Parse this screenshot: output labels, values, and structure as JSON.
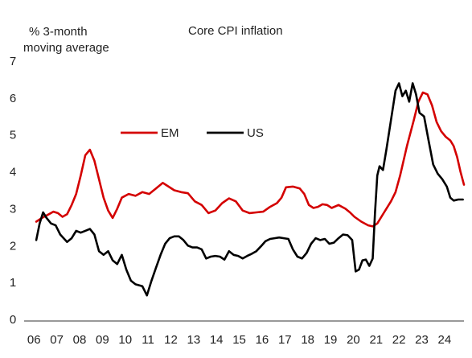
{
  "chart_data": {
    "type": "line",
    "title": "Core CPI inflation",
    "ylabel_lines": [
      "% 3-month",
      "moving average"
    ],
    "xlabel": "",
    "ylim": [
      0,
      7
    ],
    "xlim": [
      2006.0,
      2025.0
    ],
    "grid": false,
    "legend_position": "middle-left",
    "y_ticks": [
      "0",
      "1",
      "2",
      "3",
      "4",
      "5",
      "6",
      "7"
    ],
    "x_ticks": [
      {
        "label": "06",
        "x": 2006.15
      },
      {
        "label": "07",
        "x": 2007.15
      },
      {
        "label": "08",
        "x": 2008.15
      },
      {
        "label": "09",
        "x": 2009.15
      },
      {
        "label": "10",
        "x": 2010.15
      },
      {
        "label": "11",
        "x": 2011.15
      },
      {
        "label": "12",
        "x": 2012.15
      },
      {
        "label": "13",
        "x": 2013.15
      },
      {
        "label": "14",
        "x": 2014.15
      },
      {
        "label": "15",
        "x": 2015.15
      },
      {
        "label": "16",
        "x": 2016.15
      },
      {
        "label": "17",
        "x": 2017.15
      },
      {
        "label": "18",
        "x": 2018.15
      },
      {
        "label": "19",
        "x": 2019.15
      },
      {
        "label": "20",
        "x": 2020.15
      },
      {
        "label": "21",
        "x": 2021.15
      },
      {
        "label": "22",
        "x": 2022.15
      },
      {
        "label": "23",
        "x": 2023.15
      },
      {
        "label": "24",
        "x": 2024.15
      }
    ],
    "series": [
      {
        "name": "EM",
        "color": "#d40000",
        "points": [
          [
            2006.25,
            2.65
          ],
          [
            2006.5,
            2.75
          ],
          [
            2006.8,
            2.85
          ],
          [
            2007.0,
            2.92
          ],
          [
            2007.2,
            2.88
          ],
          [
            2007.4,
            2.78
          ],
          [
            2007.6,
            2.85
          ],
          [
            2007.8,
            3.1
          ],
          [
            2008.0,
            3.4
          ],
          [
            2008.2,
            3.9
          ],
          [
            2008.4,
            4.45
          ],
          [
            2008.6,
            4.6
          ],
          [
            2008.8,
            4.3
          ],
          [
            2009.0,
            3.8
          ],
          [
            2009.2,
            3.3
          ],
          [
            2009.4,
            2.95
          ],
          [
            2009.6,
            2.75
          ],
          [
            2009.8,
            3.0
          ],
          [
            2010.0,
            3.3
          ],
          [
            2010.3,
            3.4
          ],
          [
            2010.6,
            3.35
          ],
          [
            2010.9,
            3.45
          ],
          [
            2011.2,
            3.4
          ],
          [
            2011.5,
            3.55
          ],
          [
            2011.8,
            3.7
          ],
          [
            2012.0,
            3.62
          ],
          [
            2012.3,
            3.5
          ],
          [
            2012.6,
            3.45
          ],
          [
            2012.9,
            3.42
          ],
          [
            2013.2,
            3.2
          ],
          [
            2013.5,
            3.1
          ],
          [
            2013.8,
            2.88
          ],
          [
            2014.1,
            2.95
          ],
          [
            2014.4,
            3.15
          ],
          [
            2014.7,
            3.28
          ],
          [
            2015.0,
            3.2
          ],
          [
            2015.3,
            2.95
          ],
          [
            2015.6,
            2.88
          ],
          [
            2015.9,
            2.9
          ],
          [
            2016.2,
            2.92
          ],
          [
            2016.5,
            3.05
          ],
          [
            2016.8,
            3.15
          ],
          [
            2017.0,
            3.3
          ],
          [
            2017.2,
            3.58
          ],
          [
            2017.5,
            3.6
          ],
          [
            2017.8,
            3.55
          ],
          [
            2018.0,
            3.4
          ],
          [
            2018.2,
            3.1
          ],
          [
            2018.4,
            3.02
          ],
          [
            2018.6,
            3.05
          ],
          [
            2018.8,
            3.12
          ],
          [
            2019.0,
            3.1
          ],
          [
            2019.2,
            3.02
          ],
          [
            2019.5,
            3.1
          ],
          [
            2019.8,
            3.0
          ],
          [
            2020.0,
            2.9
          ],
          [
            2020.2,
            2.78
          ],
          [
            2020.5,
            2.65
          ],
          [
            2020.8,
            2.55
          ],
          [
            2021.0,
            2.52
          ],
          [
            2021.2,
            2.6
          ],
          [
            2021.5,
            2.9
          ],
          [
            2021.8,
            3.2
          ],
          [
            2022.0,
            3.45
          ],
          [
            2022.2,
            3.9
          ],
          [
            2022.5,
            4.7
          ],
          [
            2022.8,
            5.4
          ],
          [
            2023.0,
            5.9
          ],
          [
            2023.2,
            6.15
          ],
          [
            2023.4,
            6.1
          ],
          [
            2023.6,
            5.8
          ],
          [
            2023.8,
            5.35
          ],
          [
            2024.0,
            5.1
          ],
          [
            2024.2,
            4.95
          ],
          [
            2024.4,
            4.85
          ],
          [
            2024.55,
            4.7
          ],
          [
            2024.7,
            4.4
          ],
          [
            2024.85,
            4.0
          ],
          [
            2025.0,
            3.65
          ]
        ]
      },
      {
        "name": "US",
        "color": "#000000",
        "points": [
          [
            2006.25,
            2.15
          ],
          [
            2006.4,
            2.6
          ],
          [
            2006.55,
            2.9
          ],
          [
            2006.7,
            2.75
          ],
          [
            2006.9,
            2.6
          ],
          [
            2007.1,
            2.55
          ],
          [
            2007.3,
            2.3
          ],
          [
            2007.6,
            2.1
          ],
          [
            2007.8,
            2.2
          ],
          [
            2008.0,
            2.4
          ],
          [
            2008.2,
            2.35
          ],
          [
            2008.4,
            2.4
          ],
          [
            2008.6,
            2.45
          ],
          [
            2008.8,
            2.3
          ],
          [
            2009.0,
            1.85
          ],
          [
            2009.2,
            1.75
          ],
          [
            2009.4,
            1.85
          ],
          [
            2009.6,
            1.6
          ],
          [
            2009.8,
            1.5
          ],
          [
            2010.0,
            1.75
          ],
          [
            2010.2,
            1.35
          ],
          [
            2010.4,
            1.05
          ],
          [
            2010.6,
            0.95
          ],
          [
            2010.9,
            0.9
          ],
          [
            2011.1,
            0.65
          ],
          [
            2011.3,
            1.05
          ],
          [
            2011.5,
            1.4
          ],
          [
            2011.7,
            1.75
          ],
          [
            2011.9,
            2.05
          ],
          [
            2012.1,
            2.2
          ],
          [
            2012.3,
            2.25
          ],
          [
            2012.5,
            2.25
          ],
          [
            2012.7,
            2.15
          ],
          [
            2012.9,
            2.0
          ],
          [
            2013.1,
            1.95
          ],
          [
            2013.3,
            1.95
          ],
          [
            2013.5,
            1.9
          ],
          [
            2013.7,
            1.65
          ],
          [
            2013.9,
            1.7
          ],
          [
            2014.1,
            1.72
          ],
          [
            2014.3,
            1.7
          ],
          [
            2014.5,
            1.62
          ],
          [
            2014.7,
            1.85
          ],
          [
            2014.9,
            1.75
          ],
          [
            2015.1,
            1.72
          ],
          [
            2015.3,
            1.65
          ],
          [
            2015.5,
            1.72
          ],
          [
            2015.7,
            1.78
          ],
          [
            2015.9,
            1.85
          ],
          [
            2016.1,
            1.98
          ],
          [
            2016.3,
            2.12
          ],
          [
            2016.5,
            2.18
          ],
          [
            2016.7,
            2.2
          ],
          [
            2016.9,
            2.22
          ],
          [
            2017.1,
            2.2
          ],
          [
            2017.3,
            2.18
          ],
          [
            2017.5,
            1.9
          ],
          [
            2017.7,
            1.7
          ],
          [
            2017.9,
            1.65
          ],
          [
            2018.1,
            1.8
          ],
          [
            2018.3,
            2.05
          ],
          [
            2018.5,
            2.2
          ],
          [
            2018.7,
            2.15
          ],
          [
            2018.9,
            2.18
          ],
          [
            2019.1,
            2.05
          ],
          [
            2019.3,
            2.08
          ],
          [
            2019.5,
            2.2
          ],
          [
            2019.7,
            2.3
          ],
          [
            2019.9,
            2.28
          ],
          [
            2020.1,
            2.15
          ],
          [
            2020.25,
            1.3
          ],
          [
            2020.4,
            1.35
          ],
          [
            2020.55,
            1.6
          ],
          [
            2020.7,
            1.62
          ],
          [
            2020.85,
            1.45
          ],
          [
            2021.0,
            1.65
          ],
          [
            2021.1,
            2.9
          ],
          [
            2021.2,
            3.9
          ],
          [
            2021.3,
            4.15
          ],
          [
            2021.45,
            4.05
          ],
          [
            2021.6,
            4.6
          ],
          [
            2021.8,
            5.4
          ],
          [
            2022.0,
            6.2
          ],
          [
            2022.15,
            6.4
          ],
          [
            2022.3,
            6.05
          ],
          [
            2022.45,
            6.2
          ],
          [
            2022.6,
            5.9
          ],
          [
            2022.75,
            6.4
          ],
          [
            2022.9,
            6.1
          ],
          [
            2023.05,
            5.6
          ],
          [
            2023.25,
            5.5
          ],
          [
            2023.45,
            4.85
          ],
          [
            2023.65,
            4.2
          ],
          [
            2023.85,
            3.95
          ],
          [
            2024.05,
            3.8
          ],
          [
            2024.25,
            3.6
          ],
          [
            2024.4,
            3.3
          ],
          [
            2024.55,
            3.22
          ],
          [
            2024.75,
            3.25
          ],
          [
            2024.95,
            3.25
          ]
        ]
      }
    ]
  }
}
